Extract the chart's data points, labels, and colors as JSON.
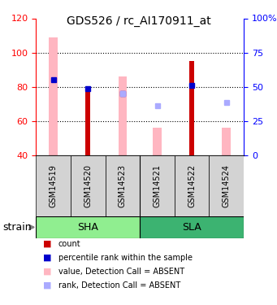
{
  "title": "GDS526 / rc_AI170911_at",
  "samples": [
    "GSM14519",
    "GSM14520",
    "GSM14523",
    "GSM14521",
    "GSM14522",
    "GSM14524"
  ],
  "groups": {
    "SHA": [
      "GSM14519",
      "GSM14520",
      "GSM14523"
    ],
    "SLA": [
      "GSM14521",
      "GSM14522",
      "GSM14524"
    ]
  },
  "group_colors": {
    "SHA": "#90EE90",
    "SLA": "#3CB371"
  },
  "ylim_left": [
    40,
    120
  ],
  "ylim_right": [
    0,
    100
  ],
  "yticks_left": [
    40,
    60,
    80,
    100,
    120
  ],
  "yticks_right": [
    0,
    25,
    50,
    75,
    100
  ],
  "ytick_labels_right": [
    "0",
    "25",
    "50",
    "75",
    "100%"
  ],
  "bar_width": 0.35,
  "red_bars": {
    "GSM14519": null,
    "GSM14520": 79,
    "GSM14523": null,
    "GSM14521": null,
    "GSM14522": 95,
    "GSM14524": null
  },
  "blue_squares": {
    "GSM14519": 84,
    "GSM14520": 79,
    "GSM14523": 76,
    "GSM14521": null,
    "GSM14522": 81,
    "GSM14524": null
  },
  "pink_bars": {
    "GSM14519": 109,
    "GSM14520": null,
    "GSM14523": 86,
    "GSM14521": 56,
    "GSM14522": null,
    "GSM14524": 56
  },
  "light_blue_squares": {
    "GSM14519": null,
    "GSM14520": null,
    "GSM14523": 76,
    "GSM14521": 69,
    "GSM14522": null,
    "GSM14524": 71
  },
  "colors": {
    "red": "#CC0000",
    "blue": "#0000CC",
    "pink": "#FFB6C1",
    "light_blue": "#AAAAFF",
    "grid": "black"
  },
  "legend_items": [
    {
      "label": "count",
      "color": "#CC0000"
    },
    {
      "label": "percentile rank within the sample",
      "color": "#0000CC"
    },
    {
      "label": "value, Detection Call = ABSENT",
      "color": "#FFB6C1"
    },
    {
      "label": "rank, Detection Call = ABSENT",
      "color": "#AAAAFF"
    }
  ]
}
